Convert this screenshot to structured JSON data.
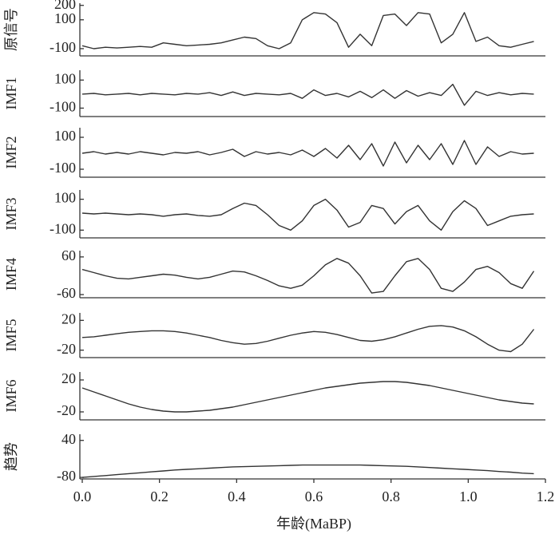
{
  "chart_data": [
    {
      "type": "line",
      "ylabel": "原信号",
      "color": "#333333",
      "xlim": [
        0,
        1.2
      ],
      "ylim": [
        -150,
        215
      ],
      "yticks": [
        200,
        100,
        -100
      ],
      "x": [
        0,
        0.03,
        0.06,
        0.09,
        0.12,
        0.15,
        0.18,
        0.21,
        0.24,
        0.27,
        0.3,
        0.33,
        0.36,
        0.39,
        0.42,
        0.45,
        0.48,
        0.51,
        0.54,
        0.57,
        0.6,
        0.63,
        0.66,
        0.69,
        0.72,
        0.75,
        0.78,
        0.81,
        0.84,
        0.87,
        0.9,
        0.93,
        0.96,
        0.99,
        1.02,
        1.05,
        1.08,
        1.11,
        1.14,
        1.17
      ],
      "values": [
        -80,
        -100,
        -90,
        -95,
        -90,
        -85,
        -90,
        -60,
        -70,
        -80,
        -75,
        -70,
        -60,
        -40,
        -20,
        -30,
        -80,
        -100,
        -60,
        100,
        150,
        140,
        80,
        -90,
        0,
        -80,
        130,
        140,
        60,
        150,
        140,
        -60,
        0,
        150,
        -50,
        -20,
        -80,
        -90,
        -70,
        -50
      ]
    },
    {
      "type": "line",
      "ylabel": "IMF1",
      "color": "#333333",
      "xlim": [
        0,
        1.2
      ],
      "ylim": [
        -160,
        170
      ],
      "yticks": [
        100,
        -100
      ],
      "x": [
        0,
        0.03,
        0.06,
        0.09,
        0.12,
        0.15,
        0.18,
        0.21,
        0.24,
        0.27,
        0.3,
        0.33,
        0.36,
        0.39,
        0.42,
        0.45,
        0.48,
        0.51,
        0.54,
        0.57,
        0.6,
        0.63,
        0.66,
        0.69,
        0.72,
        0.75,
        0.78,
        0.81,
        0.84,
        0.87,
        0.9,
        0.93,
        0.96,
        0.99,
        1.02,
        1.05,
        1.08,
        1.11,
        1.14,
        1.17
      ],
      "values": [
        0,
        5,
        -5,
        0,
        5,
        -5,
        5,
        0,
        -5,
        5,
        0,
        10,
        -10,
        15,
        -10,
        5,
        0,
        -5,
        5,
        -30,
        30,
        -10,
        5,
        -20,
        20,
        -25,
        30,
        -30,
        25,
        -15,
        10,
        -10,
        70,
        -80,
        20,
        -10,
        10,
        -5,
        5,
        0
      ]
    },
    {
      "type": "line",
      "ylabel": "IMF2",
      "color": "#333333",
      "xlim": [
        0,
        1.2
      ],
      "ylim": [
        -150,
        160
      ],
      "yticks": [
        100,
        -100
      ],
      "x": [
        0,
        0.03,
        0.06,
        0.09,
        0.12,
        0.15,
        0.18,
        0.21,
        0.24,
        0.27,
        0.3,
        0.33,
        0.36,
        0.39,
        0.42,
        0.45,
        0.48,
        0.51,
        0.54,
        0.57,
        0.6,
        0.63,
        0.66,
        0.69,
        0.72,
        0.75,
        0.78,
        0.81,
        0.84,
        0.87,
        0.9,
        0.93,
        0.96,
        0.99,
        1.02,
        1.05,
        1.08,
        1.11,
        1.14,
        1.17
      ],
      "values": [
        0,
        10,
        -5,
        5,
        -5,
        10,
        0,
        -10,
        5,
        0,
        10,
        -10,
        5,
        25,
        -20,
        10,
        -5,
        5,
        -10,
        20,
        -20,
        30,
        -30,
        50,
        -40,
        60,
        -80,
        70,
        -60,
        50,
        -40,
        60,
        -70,
        80,
        -70,
        40,
        -20,
        10,
        -5,
        0
      ]
    },
    {
      "type": "line",
      "ylabel": "IMF3",
      "color": "#333333",
      "xlim": [
        0,
        1.2
      ],
      "ylim": [
        -150,
        160
      ],
      "yticks": [
        100,
        -100
      ],
      "x": [
        0,
        0.03,
        0.06,
        0.09,
        0.12,
        0.15,
        0.18,
        0.21,
        0.24,
        0.27,
        0.3,
        0.33,
        0.36,
        0.39,
        0.42,
        0.45,
        0.48,
        0.51,
        0.54,
        0.57,
        0.6,
        0.63,
        0.66,
        0.69,
        0.72,
        0.75,
        0.78,
        0.81,
        0.84,
        0.87,
        0.9,
        0.93,
        0.96,
        0.99,
        1.02,
        1.05,
        1.08,
        1.11,
        1.14,
        1.17
      ],
      "values": [
        10,
        5,
        10,
        5,
        0,
        5,
        0,
        -10,
        0,
        5,
        -5,
        -10,
        0,
        40,
        75,
        60,
        0,
        -70,
        -100,
        -40,
        60,
        100,
        30,
        -80,
        -50,
        60,
        40,
        -60,
        20,
        60,
        -40,
        -100,
        20,
        90,
        40,
        -70,
        -40,
        -10,
        0,
        5
      ]
    },
    {
      "type": "line",
      "ylabel": "IMF4",
      "color": "#333333",
      "xlim": [
        0,
        1.2
      ],
      "ylim": [
        -70,
        80
      ],
      "yticks": [
        60,
        -60
      ],
      "x": [
        0,
        0.03,
        0.06,
        0.09,
        0.12,
        0.15,
        0.18,
        0.21,
        0.24,
        0.27,
        0.3,
        0.33,
        0.36,
        0.39,
        0.42,
        0.45,
        0.48,
        0.51,
        0.54,
        0.57,
        0.6,
        0.63,
        0.66,
        0.69,
        0.72,
        0.75,
        0.78,
        0.81,
        0.84,
        0.87,
        0.9,
        0.93,
        0.96,
        0.99,
        1.02,
        1.05,
        1.08,
        1.11,
        1.14,
        1.17
      ],
      "values": [
        20,
        10,
        0,
        -8,
        -10,
        -5,
        0,
        5,
        2,
        -5,
        -10,
        -5,
        5,
        15,
        12,
        0,
        -15,
        -32,
        -40,
        -30,
        0,
        35,
        55,
        40,
        0,
        -55,
        -50,
        0,
        45,
        55,
        20,
        -40,
        -50,
        -20,
        20,
        30,
        10,
        -25,
        -40,
        15
      ]
    },
    {
      "type": "line",
      "ylabel": "IMF5",
      "color": "#333333",
      "xlim": [
        0,
        1.2
      ],
      "ylim": [
        -30,
        30
      ],
      "yticks": [
        20,
        -20
      ],
      "x": [
        0,
        0.03,
        0.06,
        0.09,
        0.12,
        0.15,
        0.18,
        0.21,
        0.24,
        0.27,
        0.3,
        0.33,
        0.36,
        0.39,
        0.42,
        0.45,
        0.48,
        0.51,
        0.54,
        0.57,
        0.6,
        0.63,
        0.66,
        0.69,
        0.72,
        0.75,
        0.78,
        0.81,
        0.84,
        0.87,
        0.9,
        0.93,
        0.96,
        0.99,
        1.02,
        1.05,
        1.08,
        1.11,
        1.14,
        1.17
      ],
      "values": [
        -3,
        -2,
        0,
        2,
        4,
        5,
        6,
        6,
        5,
        3,
        0,
        -3,
        -7,
        -10,
        -12,
        -11,
        -8,
        -4,
        0,
        3,
        5,
        4,
        1,
        -3,
        -7,
        -8,
        -6,
        -2,
        3,
        8,
        12,
        13,
        11,
        6,
        -2,
        -12,
        -20,
        -22,
        -12,
        8
      ]
    },
    {
      "type": "line",
      "ylabel": "IMF6",
      "color": "#333333",
      "xlim": [
        0,
        1.2
      ],
      "ylim": [
        -30,
        30
      ],
      "yticks": [
        20,
        -20
      ],
      "x": [
        0,
        0.03,
        0.06,
        0.09,
        0.12,
        0.15,
        0.18,
        0.21,
        0.24,
        0.27,
        0.3,
        0.33,
        0.36,
        0.39,
        0.42,
        0.45,
        0.48,
        0.51,
        0.54,
        0.57,
        0.6,
        0.63,
        0.66,
        0.69,
        0.72,
        0.75,
        0.78,
        0.81,
        0.84,
        0.87,
        0.9,
        0.93,
        0.96,
        0.99,
        1.02,
        1.05,
        1.08,
        1.11,
        1.14,
        1.17
      ],
      "values": [
        10,
        5,
        0,
        -5,
        -10,
        -14,
        -17,
        -19,
        -20,
        -20,
        -19,
        -18,
        -16,
        -14,
        -11,
        -8,
        -5,
        -2,
        1,
        4,
        7,
        10,
        12,
        14,
        16,
        17,
        18,
        18,
        17,
        15,
        13,
        10,
        7,
        4,
        1,
        -2,
        -5,
        -7,
        -9,
        -10
      ]
    },
    {
      "type": "line",
      "ylabel": "趋势",
      "color": "#333333",
      "xlim": [
        0,
        1.2
      ],
      "ylim": [
        -85,
        60
      ],
      "yticks": [
        40,
        -80
      ],
      "xlabel": "年龄(MaBP)",
      "xticks": [
        {
          "value": 0,
          "label": "0.0"
        },
        0.2,
        0.4,
        0.6,
        0.8,
        {
          "value": 1,
          "label": "1.0"
        },
        1.2
      ],
      "x": [
        0,
        0.03,
        0.06,
        0.09,
        0.12,
        0.15,
        0.18,
        0.21,
        0.24,
        0.27,
        0.3,
        0.33,
        0.36,
        0.39,
        0.42,
        0.45,
        0.48,
        0.51,
        0.54,
        0.57,
        0.6,
        0.63,
        0.66,
        0.69,
        0.72,
        0.75,
        0.78,
        0.81,
        0.84,
        0.87,
        0.9,
        0.93,
        0.96,
        0.99,
        1.02,
        1.05,
        1.08,
        1.11,
        1.14,
        1.17
      ],
      "values": [
        -80,
        -77,
        -74,
        -71,
        -68,
        -65,
        -62,
        -59,
        -56,
        -54,
        -52,
        -50,
        -48,
        -46,
        -45,
        -44,
        -43,
        -42,
        -41,
        -40,
        -40,
        -40,
        -40,
        -40,
        -40,
        -41,
        -42,
        -43,
        -44,
        -46,
        -48,
        -50,
        -52,
        -54,
        -56,
        -58,
        -61,
        -63,
        -66,
        -68
      ]
    }
  ]
}
